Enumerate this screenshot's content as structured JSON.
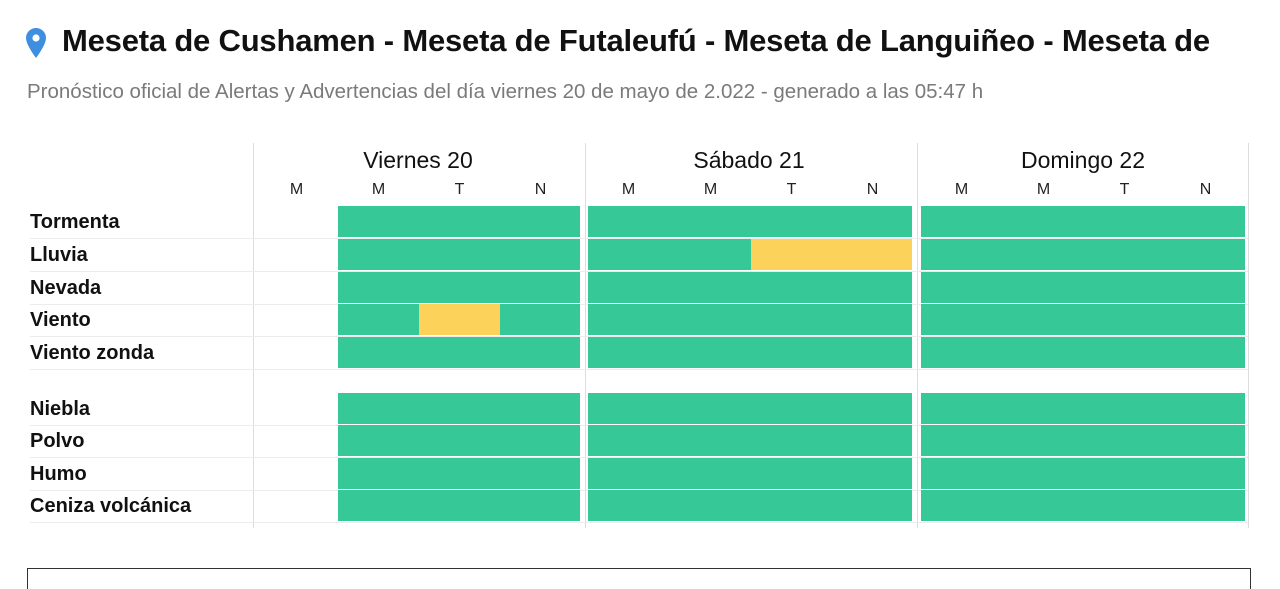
{
  "header": {
    "title": "Meseta de Cushamen - Meseta de Futaleufú - Meseta de Languiñeo - Meseta de",
    "subtitle": "Pronóstico oficial de Alertas y Advertencias del día viernes 20 de mayo de 2.022 - generado a las 05:47 h",
    "icon": "location-pin-icon"
  },
  "colors": {
    "none": "#37c897",
    "yellow": "#fcd25a",
    "pin": "#3f8fe0"
  },
  "days": [
    {
      "label": "Viernes 20",
      "periods": [
        "M",
        "M",
        "T",
        "N"
      ]
    },
    {
      "label": "Sábado 21",
      "periods": [
        "M",
        "M",
        "T",
        "N"
      ]
    },
    {
      "label": "Domingo 22",
      "periods": [
        "M",
        "M",
        "T",
        "N"
      ]
    }
  ],
  "rows": [
    {
      "label": "Tormenta",
      "levels": [
        [
          null,
          "none",
          "none",
          "none"
        ],
        [
          "none",
          "none",
          "none",
          "none"
        ],
        [
          "none",
          "none",
          "none",
          "none"
        ]
      ]
    },
    {
      "label": "Lluvia",
      "levels": [
        [
          null,
          "none",
          "none",
          "none"
        ],
        [
          "none",
          "none",
          "yellow",
          "yellow"
        ],
        [
          "none",
          "none",
          "none",
          "none"
        ]
      ]
    },
    {
      "label": "Nevada",
      "levels": [
        [
          null,
          "none",
          "none",
          "none"
        ],
        [
          "none",
          "none",
          "none",
          "none"
        ],
        [
          "none",
          "none",
          "none",
          "none"
        ]
      ]
    },
    {
      "label": "Viento",
      "levels": [
        [
          null,
          "none",
          "yellow",
          "none"
        ],
        [
          "none",
          "none",
          "none",
          "none"
        ],
        [
          "none",
          "none",
          "none",
          "none"
        ]
      ]
    },
    {
      "label": "Viento zonda",
      "levels": [
        [
          null,
          "none",
          "none",
          "none"
        ],
        [
          "none",
          "none",
          "none",
          "none"
        ],
        [
          "none",
          "none",
          "none",
          "none"
        ]
      ]
    },
    {
      "label": "Niebla",
      "levels": [
        [
          null,
          "none",
          "none",
          "none"
        ],
        [
          "none",
          "none",
          "none",
          "none"
        ],
        [
          "none",
          "none",
          "none",
          "none"
        ]
      ]
    },
    {
      "label": "Polvo",
      "levels": [
        [
          null,
          "none",
          "none",
          "none"
        ],
        [
          "none",
          "none",
          "none",
          "none"
        ],
        [
          "none",
          "none",
          "none",
          "none"
        ]
      ]
    },
    {
      "label": "Humo",
      "levels": [
        [
          null,
          "none",
          "none",
          "none"
        ],
        [
          "none",
          "none",
          "none",
          "none"
        ],
        [
          "none",
          "none",
          "none",
          "none"
        ]
      ]
    },
    {
      "label": "Ceniza volcánica",
      "levels": [
        [
          null,
          "none",
          "none",
          "none"
        ],
        [
          "none",
          "none",
          "none",
          "none"
        ],
        [
          "none",
          "none",
          "none",
          "none"
        ]
      ]
    }
  ]
}
